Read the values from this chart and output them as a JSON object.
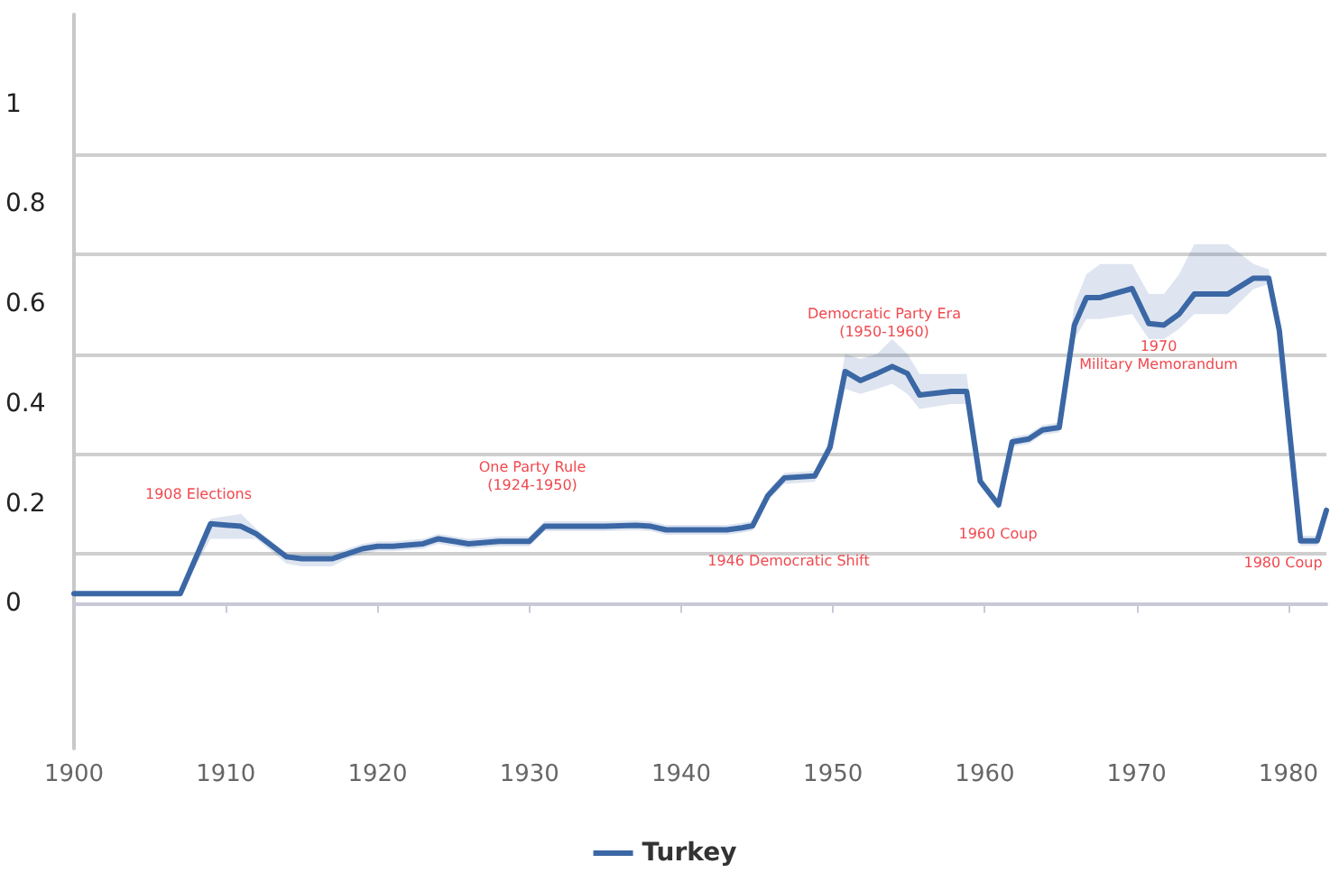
{
  "chart_data": {
    "type": "line",
    "x": [
      1900,
      1907,
      1909,
      1911,
      1912,
      1914,
      1915,
      1917,
      1918,
      1919,
      1920,
      1921,
      1923,
      1924,
      1926,
      1928,
      1930,
      1931,
      1935,
      1937,
      1938,
      1939,
      1941,
      1943,
      1944,
      1944.7,
      1945.7,
      1946.8,
      1948.8,
      1949.8,
      1950.8,
      1951.8,
      1952.9,
      1953.9,
      1954.9,
      1955.7,
      1957.8,
      1958.8,
      1959.7,
      1960.9,
      1961.8,
      1962.9,
      1963.8,
      1964.9,
      1965.9,
      1966.7,
      1967.6,
      1969.7,
      1970.8,
      1971.8,
      1972.8,
      1973.8,
      1976,
      1977.7,
      1978.7,
      1979.4,
      1980.8,
      1981.9,
      1982.5
    ],
    "series": [
      {
        "name": "Turkey",
        "color": "#3b67a5",
        "values": [
          0.02,
          0.02,
          0.16,
          0.155,
          0.14,
          0.094,
          0.09,
          0.09,
          0.1,
          0.11,
          0.115,
          0.115,
          0.12,
          0.13,
          0.12,
          0.125,
          0.125,
          0.155,
          0.155,
          0.157,
          0.155,
          0.148,
          0.148,
          0.148,
          0.152,
          0.156,
          0.216,
          0.252,
          0.256,
          0.313,
          0.465,
          0.447,
          0.461,
          0.475,
          0.461,
          0.418,
          0.425,
          0.425,
          0.245,
          0.198,
          0.324,
          0.33,
          0.348,
          0.353,
          0.558,
          0.613,
          0.613,
          0.631,
          0.561,
          0.558,
          0.58,
          0.62,
          0.62,
          0.652,
          0.652,
          0.547,
          0.126,
          0.126,
          0.187
        ],
        "lower": [
          0.02,
          0.02,
          0.13,
          0.13,
          0.13,
          0.08,
          0.075,
          0.075,
          0.09,
          0.1,
          0.105,
          0.105,
          0.11,
          0.12,
          0.11,
          0.115,
          0.115,
          0.145,
          0.145,
          0.147,
          0.145,
          0.138,
          0.138,
          0.138,
          0.142,
          0.146,
          0.206,
          0.24,
          0.244,
          0.3,
          0.43,
          0.42,
          0.43,
          0.44,
          0.42,
          0.39,
          0.4,
          0.4,
          0.235,
          0.188,
          0.314,
          0.32,
          0.338,
          0.343,
          0.53,
          0.57,
          0.57,
          0.58,
          0.53,
          0.53,
          0.55,
          0.58,
          0.58,
          0.63,
          0.64,
          0.537,
          0.116,
          0.116,
          0.177
        ],
        "upper": [
          0.02,
          0.02,
          0.17,
          0.18,
          0.15,
          0.1,
          0.1,
          0.1,
          0.11,
          0.12,
          0.125,
          0.125,
          0.13,
          0.14,
          0.13,
          0.135,
          0.135,
          0.165,
          0.165,
          0.167,
          0.165,
          0.158,
          0.158,
          0.158,
          0.162,
          0.166,
          0.226,
          0.262,
          0.266,
          0.33,
          0.5,
          0.49,
          0.5,
          0.53,
          0.5,
          0.46,
          0.46,
          0.46,
          0.255,
          0.208,
          0.334,
          0.34,
          0.358,
          0.363,
          0.6,
          0.66,
          0.68,
          0.68,
          0.62,
          0.62,
          0.66,
          0.72,
          0.72,
          0.68,
          0.67,
          0.557,
          0.136,
          0.136,
          0.197
        ]
      }
    ],
    "xlim": [
      1900,
      1982.5
    ],
    "xticks": [
      1900,
      1910,
      1920,
      1930,
      1940,
      1950,
      1960,
      1970,
      1980
    ],
    "ylim": [
      -0.29,
      1.18
    ],
    "yticks": [
      0,
      {
        "value": 0.1,
        "label": null
      },
      0.2,
      {
        "value": 0.3,
        "label": null
      },
      0.4,
      {
        "value": 0.5,
        "label": null
      },
      0.6,
      {
        "value": 0.7,
        "label": null
      },
      0.8,
      {
        "value": 0.9,
        "label": null
      },
      1
    ],
    "grid": "y",
    "legend": "bottom",
    "marker": "none",
    "line_style": "solid",
    "annotations": [
      "1908 Elections",
      "One Party Rule\n(1924-1950)",
      "1946 Democratic Shift",
      "Democratic Party Era\n(1950-1960)",
      "1960 Coup",
      "1970\nMilitary Memorandum",
      "1980 Coup"
    ]
  }
}
